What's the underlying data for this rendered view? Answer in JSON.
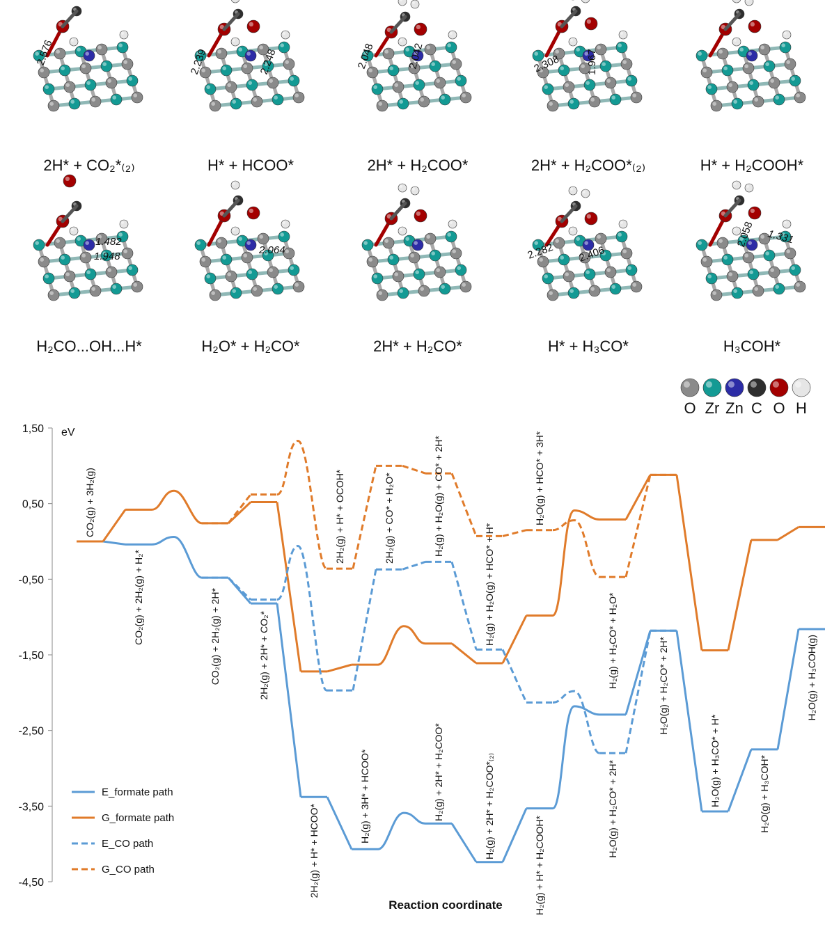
{
  "structures": [
    {
      "caption": "2H* + CO₂*₍₂₎",
      "distances": [
        "2.576"
      ]
    },
    {
      "caption": "H* + HCOO*",
      "distances": [
        "2.239",
        "2.248"
      ]
    },
    {
      "caption": "2H* + H₂COO*",
      "distances": [
        "2.048",
        "2.042"
      ]
    },
    {
      "caption": "2H* + H₂COO*₍₂₎",
      "distances": [
        "2.308",
        "1.967"
      ]
    },
    {
      "caption": "H* + H₂COOH*",
      "distances": []
    },
    {
      "caption": "H₂CO...OH...H*",
      "distances": [
        "1.482",
        "1.948"
      ]
    },
    {
      "caption": "H₂O* + H₂CO*",
      "distances": [
        "2.064"
      ]
    },
    {
      "caption": "2H* + H₂CO*",
      "distances": []
    },
    {
      "caption": "H* + H₃CO*",
      "distances": [
        "2.282",
        "2.406"
      ]
    },
    {
      "caption": "H₃COH*",
      "distances": [
        "2.058",
        "1.331"
      ]
    }
  ],
  "atom_legend": [
    {
      "label": "O",
      "color": "#8a8a8a"
    },
    {
      "label": "Zr",
      "color": "#139a94"
    },
    {
      "label": "Zn",
      "color": "#2c2ca6"
    },
    {
      "label": "C",
      "color": "#2e2e2e"
    },
    {
      "label": "O",
      "color": "#a30000"
    },
    {
      "label": "H",
      "color": "#e6e6e6"
    }
  ],
  "chart_data": {
    "type": "line",
    "y_unit": "eV",
    "x_label": "Reaction coordinate",
    "ylim": [
      -4.5,
      1.5
    ],
    "yticks": [
      {
        "value": -4.5,
        "label": "-4,50"
      },
      {
        "value": -3.5,
        "label": "-3,50"
      },
      {
        "value": -2.5,
        "label": "-2,50"
      },
      {
        "value": -1.5,
        "label": "-1,50"
      },
      {
        "value": -0.5,
        "label": "-0,50"
      },
      {
        "value": 0.5,
        "label": "0,50"
      },
      {
        "value": 1.5,
        "label": "1,50"
      }
    ],
    "categories": [
      "CO₂(g) + 3H₂(g)",
      "CO₂(g) + 2H₂(g) + H₂*",
      null,
      "CO₂(g) + 2H₂(g) + 2H*",
      "2H₂(g) + 2H* + CO₂*",
      null,
      "2H₂(g) + H* + HCOO*",
      null,
      "H₂(g) + 3H* + HCOO*",
      null,
      null,
      "H₂(g) + 2H* + H₂COO*",
      "H₂(g) + 2H* + H₂COO*₍₂₎",
      "H₂(g) + H* + H₂COOH*",
      null,
      "H₂(g) + H₂CO* + H₂O*",
      "H₂O(g) + H₂CO* + 2H*",
      "H₂O(g) + H₃CO* + H*",
      "H₂O(g) + H₃COH*",
      "H₂O(g) + H₃COH(g)"
    ],
    "co_labels": [
      null,
      null,
      null,
      null,
      null,
      null,
      null,
      "2H₂(g) + H* + OCOH*",
      null,
      "2H₂(g) + CO* + H₂O*",
      null,
      "H₂(g) + H₂O(g) + CO* + 2H*",
      "H₂(g) + H₂O(g) + HCO* + H*",
      "H₂O(g) + HCO* + 3H*",
      null,
      "H₂O(g) + H₂CO* + 2H*",
      null,
      null,
      null,
      null
    ],
    "series": [
      {
        "name": "E_formate path",
        "color": "#5b9bd5",
        "dashed": false,
        "values": [
          0,
          -0.04,
          0.06,
          -0.48,
          -0.82,
          null,
          -3.38,
          null,
          -4.07,
          null,
          -3.59,
          -3.73,
          -4.24,
          -3.53,
          -2.18,
          -2.29,
          -1.18,
          -3.57,
          -2.75,
          -1.16
        ]
      },
      {
        "name": "G_formate path",
        "color": "#e07b2a",
        "dashed": false,
        "values": [
          0,
          0.42,
          0.67,
          0.24,
          0.52,
          null,
          -1.72,
          null,
          -1.63,
          null,
          -1.12,
          -1.35,
          -1.61,
          -0.98,
          0.41,
          0.29,
          0.88,
          -1.44,
          0.02,
          0.19
        ]
      },
      {
        "name": "E_CO path",
        "color": "#5b9bd5",
        "dashed": true,
        "values": [
          null,
          null,
          null,
          -0.48,
          -0.77,
          -0.06,
          null,
          -1.97,
          null,
          -0.37,
          null,
          -0.27,
          -1.43,
          -2.13,
          -1.98,
          -2.8,
          -1.18,
          null,
          null,
          null
        ]
      },
      {
        "name": "G_CO path",
        "color": "#e07b2a",
        "dashed": true,
        "values": [
          null,
          null,
          null,
          0.24,
          0.62,
          1.33,
          null,
          -0.36,
          null,
          1.0,
          null,
          0.9,
          0.07,
          0.15,
          0.28,
          -0.47,
          0.88,
          null,
          null,
          null
        ]
      }
    ],
    "legend": "lower left"
  }
}
